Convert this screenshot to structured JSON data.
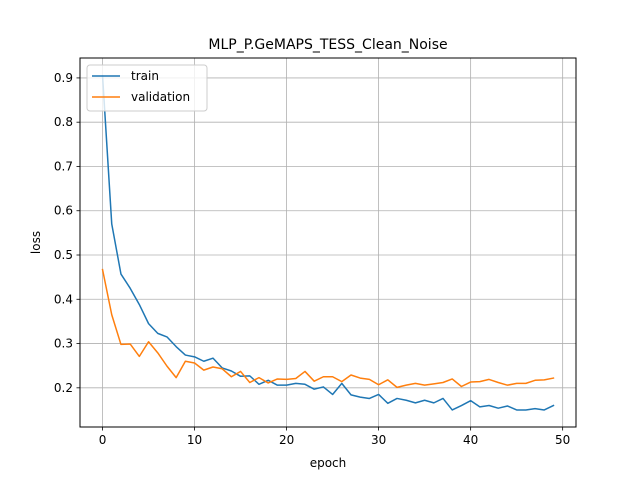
{
  "chart_data": {
    "type": "line",
    "title": "MLP_P.GeMAPS_TESS_Clean_Noise",
    "xlabel": "epoch",
    "ylabel": "loss",
    "xlim": [
      -2.45,
      51.45
    ],
    "ylim": [
      0.1115,
      0.945
    ],
    "xticks": [
      0,
      10,
      20,
      30,
      40,
      50
    ],
    "yticks": [
      0.2,
      0.3,
      0.4,
      0.5,
      0.6,
      0.7,
      0.8,
      0.9
    ],
    "grid": true,
    "legend_position": "top-left",
    "x": [
      0,
      1,
      2,
      3,
      4,
      5,
      6,
      7,
      8,
      9,
      10,
      11,
      12,
      13,
      14,
      15,
      16,
      17,
      18,
      19,
      20,
      21,
      22,
      23,
      24,
      25,
      26,
      27,
      28,
      29,
      30,
      31,
      32,
      33,
      34,
      35,
      36,
      37,
      38,
      39,
      40,
      41,
      42,
      43,
      44,
      45,
      46,
      47,
      48,
      49
    ],
    "series": [
      {
        "name": "train",
        "color": "#1f77b4",
        "values": [
          0.905,
          0.57,
          0.457,
          0.425,
          0.388,
          0.345,
          0.323,
          0.315,
          0.293,
          0.274,
          0.27,
          0.26,
          0.267,
          0.245,
          0.238,
          0.226,
          0.227,
          0.208,
          0.217,
          0.206,
          0.206,
          0.21,
          0.208,
          0.197,
          0.202,
          0.185,
          0.21,
          0.184,
          0.179,
          0.176,
          0.185,
          0.165,
          0.176,
          0.172,
          0.166,
          0.172,
          0.166,
          0.176,
          0.15,
          0.16,
          0.171,
          0.157,
          0.16,
          0.154,
          0.159,
          0.15,
          0.15,
          0.153,
          0.15,
          0.16
        ]
      },
      {
        "name": "validation",
        "color": "#ff7f0e",
        "values": [
          0.467,
          0.365,
          0.298,
          0.299,
          0.271,
          0.304,
          0.279,
          0.249,
          0.223,
          0.26,
          0.256,
          0.24,
          0.247,
          0.243,
          0.225,
          0.237,
          0.212,
          0.223,
          0.211,
          0.22,
          0.219,
          0.221,
          0.237,
          0.215,
          0.225,
          0.225,
          0.214,
          0.229,
          0.222,
          0.219,
          0.207,
          0.218,
          0.201,
          0.206,
          0.21,
          0.206,
          0.209,
          0.212,
          0.22,
          0.203,
          0.213,
          0.214,
          0.219,
          0.212,
          0.206,
          0.21,
          0.21,
          0.217,
          0.218,
          0.222
        ]
      }
    ]
  }
}
